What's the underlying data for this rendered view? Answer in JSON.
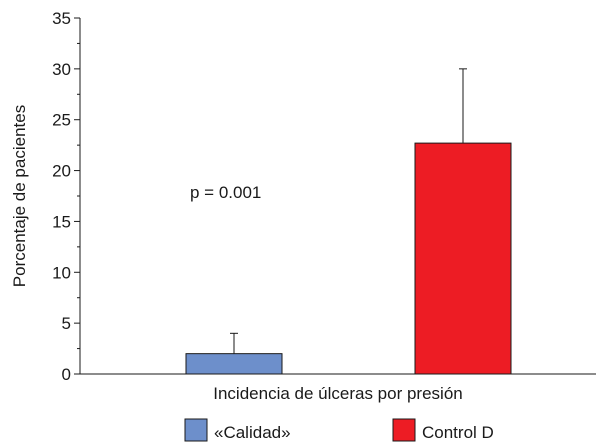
{
  "chart_data": {
    "type": "bar",
    "title": "",
    "xlabel": "Incidencia de úlceras por presión",
    "ylabel": "Porcentaje de pacientes",
    "ylim": [
      0,
      35
    ],
    "yticks": [
      0,
      5,
      10,
      15,
      20,
      25,
      30,
      35
    ],
    "grid": false,
    "legend_position": "bottom",
    "annotation": "p = 0.001",
    "series": [
      {
        "name": "«Calidad»",
        "value": 2.0,
        "error": 2.0,
        "color": "#6d8fcb"
      },
      {
        "name": "Control D",
        "value": 22.7,
        "error": 7.3,
        "color": "#ed1c24"
      }
    ]
  }
}
